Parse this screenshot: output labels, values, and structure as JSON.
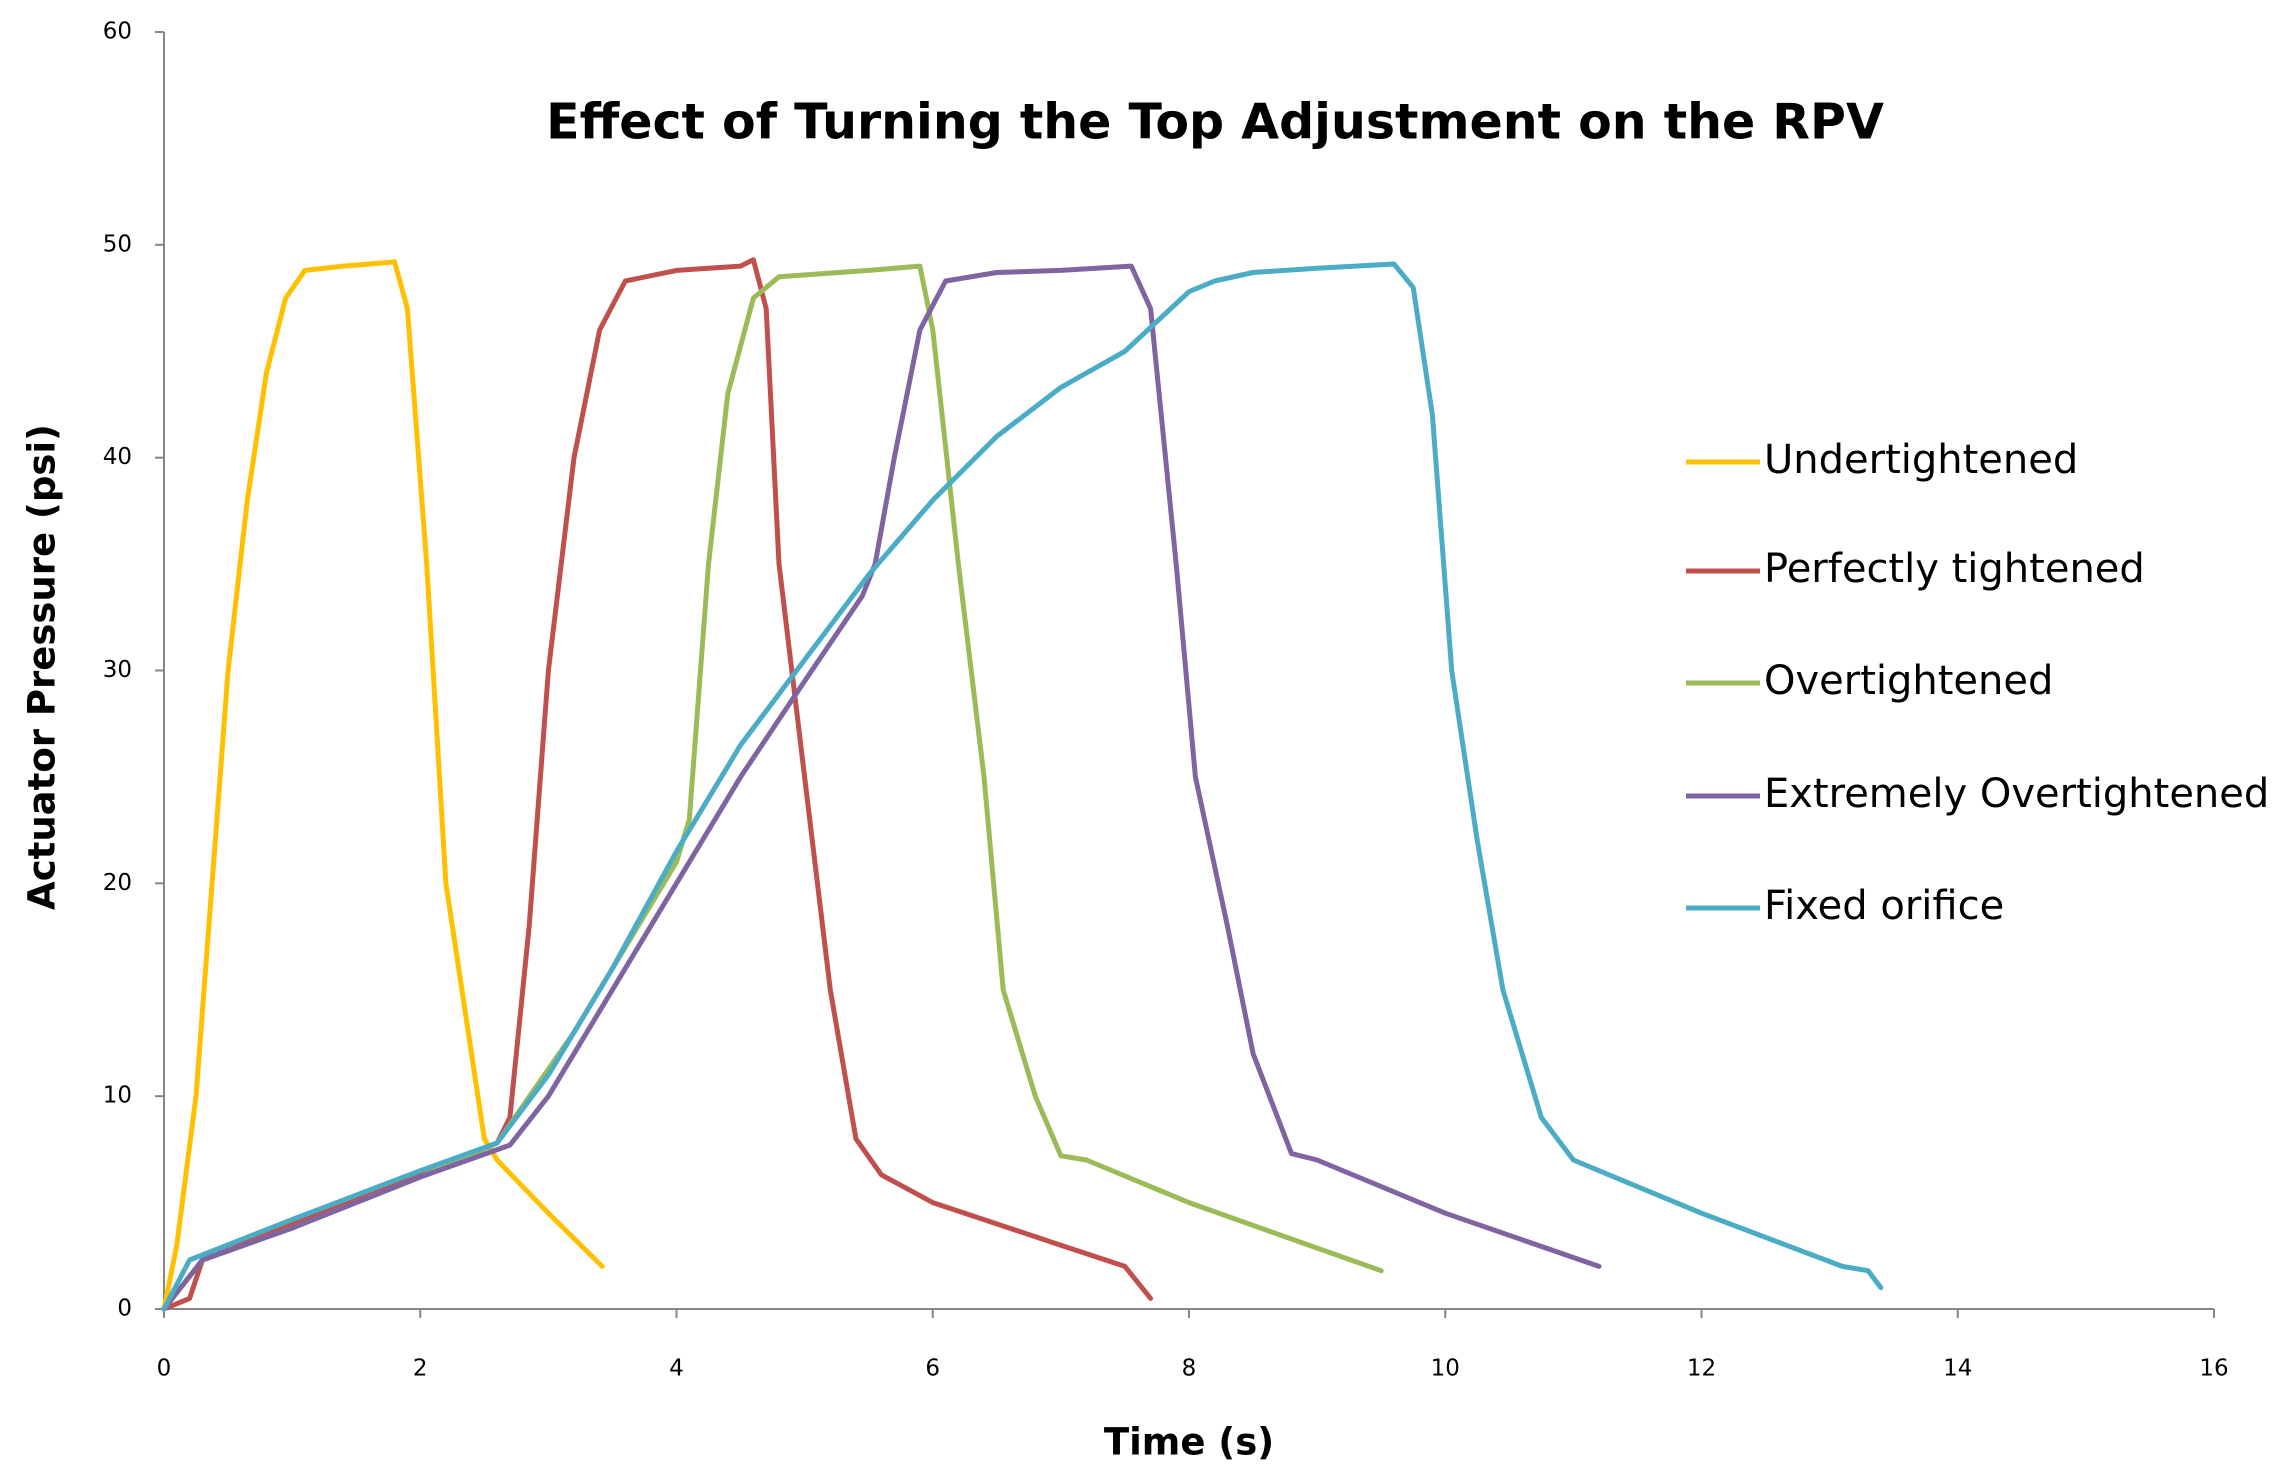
{
  "chart_data": {
    "type": "line",
    "title": "Effect of Turning the Top Adjustment on the RPV",
    "x_label": "Time (s)",
    "y_label": "Actuator Pressure (psi)",
    "xlim": [
      0,
      16
    ],
    "xticks": [
      0,
      2,
      4,
      6,
      8,
      10,
      12,
      14,
      16
    ],
    "ylim": [
      0,
      60
    ],
    "yticks": [
      0,
      10,
      20,
      30,
      40,
      50,
      60
    ],
    "grid": false,
    "legend": "right",
    "series": [
      {
        "name": "Undertightened",
        "color": "#ffc000",
        "x": [
          0,
          0.1,
          0.25,
          0.4,
          0.5,
          0.65,
          0.8,
          0.95,
          1.1,
          1.4,
          1.8,
          1.9,
          2.05,
          2.2,
          2.35,
          2.5,
          2.6,
          3.0,
          3.42
        ],
        "values": [
          0,
          3,
          10,
          22,
          30,
          38,
          44,
          47.5,
          48.8,
          49,
          49.2,
          47,
          35,
          20,
          14,
          8,
          7,
          4.5,
          2
        ]
      },
      {
        "name": "Perfectly tightened",
        "color": "#c0504d",
        "x": [
          0,
          0.2,
          0.3,
          0.8,
          1.5,
          2.3,
          2.6,
          2.7,
          2.85,
          3.0,
          3.2,
          3.4,
          3.6,
          4.0,
          4.5,
          4.6,
          4.7,
          4.8,
          5.0,
          5.2,
          5.4,
          5.6,
          6.0,
          7.0,
          7.5,
          7.7
        ],
        "values": [
          0,
          0.5,
          2.3,
          3.5,
          5.2,
          7,
          7.8,
          9,
          18,
          30,
          40,
          46,
          48.3,
          48.8,
          49,
          49.3,
          47,
          35,
          25,
          15,
          8,
          6.3,
          5,
          3,
          2,
          0.5
        ]
      },
      {
        "name": "Overtightened",
        "color": "#9bbb59",
        "x": [
          0,
          0.3,
          1,
          2,
          2.6,
          3.2,
          3.6,
          4.0,
          4.1,
          4.25,
          4.4,
          4.6,
          4.8,
          5.5,
          5.9,
          6.0,
          6.2,
          6.4,
          6.55,
          6.8,
          7.0,
          7.2,
          8,
          8.7,
          9.5
        ],
        "values": [
          0,
          2.3,
          3.8,
          6.2,
          7.8,
          13,
          17,
          21,
          23,
          35,
          43,
          47.5,
          48.5,
          48.8,
          49,
          46,
          35,
          25,
          15,
          10,
          7.2,
          7,
          5,
          3.5,
          1.8
        ]
      },
      {
        "name": "Extremely Overtightened",
        "color": "#8064a2",
        "x": [
          0,
          0.3,
          1,
          2,
          2.7,
          3,
          3.5,
          4,
          4.5,
          5,
          5.45,
          5.55,
          5.7,
          5.9,
          6.1,
          6.5,
          7.0,
          7.55,
          7.7,
          7.9,
          8.05,
          8.3,
          8.5,
          8.8,
          9.0,
          10,
          11.2
        ],
        "values": [
          0,
          2.3,
          3.8,
          6.2,
          7.7,
          10,
          15,
          20,
          25,
          29.5,
          33.5,
          35,
          40,
          46,
          48.3,
          48.7,
          48.8,
          49,
          47,
          35,
          25,
          18,
          12,
          7.3,
          7,
          4.5,
          2
        ]
      },
      {
        "name": "Fixed orifice",
        "color": "#4bacc6",
        "x": [
          0,
          0.2,
          1,
          2,
          2.6,
          3,
          3.5,
          4,
          4.5,
          5,
          5.5,
          6,
          6.5,
          7,
          7.5,
          8,
          8.2,
          8.5,
          9,
          9.6,
          9.75,
          9.9,
          10.05,
          10.25,
          10.45,
          10.75,
          11,
          11.2,
          12,
          13.1,
          13.3,
          13.4
        ],
        "values": [
          0,
          2.3,
          4.2,
          6.5,
          7.8,
          11,
          16,
          21.5,
          26.5,
          30.5,
          34.5,
          38,
          41,
          43.3,
          45,
          47.8,
          48.3,
          48.7,
          48.9,
          49.1,
          48,
          42,
          30,
          22,
          15,
          9,
          7,
          6.5,
          4.5,
          2,
          1.8,
          1
        ]
      }
    ]
  }
}
